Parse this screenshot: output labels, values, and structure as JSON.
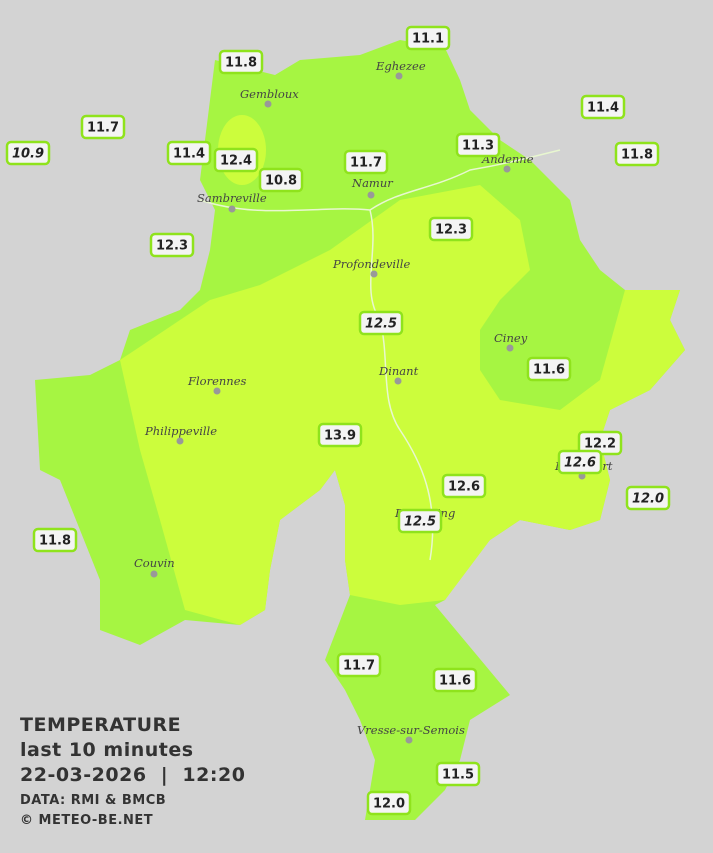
{
  "title": {
    "lines": [
      "TEMPERATURE",
      "last 10 minutes",
      "22-03-2026  |  12:20"
    ],
    "credits": [
      "DATA: RMI & BMCB",
      "© METEO-BE.NET"
    ]
  },
  "cities": [
    "Eghezee",
    "Gembloux",
    "Andenne",
    "Namur",
    "Sambreville",
    "Profondeville",
    "Ciney",
    "Florennes",
    "Dinant",
    "Philippeville",
    "Rochefort",
    "Beauraing",
    "Couvin",
    "Vresse-sur-Semois"
  ],
  "stations": [
    {
      "label": "11.1"
    },
    {
      "label": "11.8"
    },
    {
      "label": "11.4"
    },
    {
      "label": "11.7"
    },
    {
      "label": "10.9",
      "style": "italic"
    },
    {
      "label": "11.4"
    },
    {
      "label": "12.4"
    },
    {
      "label": "11.3"
    },
    {
      "label": "11.8"
    },
    {
      "label": "11.7"
    },
    {
      "label": "10.8"
    },
    {
      "label": "12.3"
    },
    {
      "label": "12.3"
    },
    {
      "label": "12.5",
      "style": "italic"
    },
    {
      "label": "11.6"
    },
    {
      "label": "13.9"
    },
    {
      "label": "12.2"
    },
    {
      "label": "12.6",
      "style": "italic"
    },
    {
      "label": "12.6"
    },
    {
      "label": "12.0",
      "style": "italic"
    },
    {
      "label": "12.5",
      "style": "italic"
    },
    {
      "label": "11.8"
    },
    {
      "label": "11.7"
    },
    {
      "label": "11.6"
    },
    {
      "label": "11.5"
    },
    {
      "label": "12.0"
    }
  ]
}
